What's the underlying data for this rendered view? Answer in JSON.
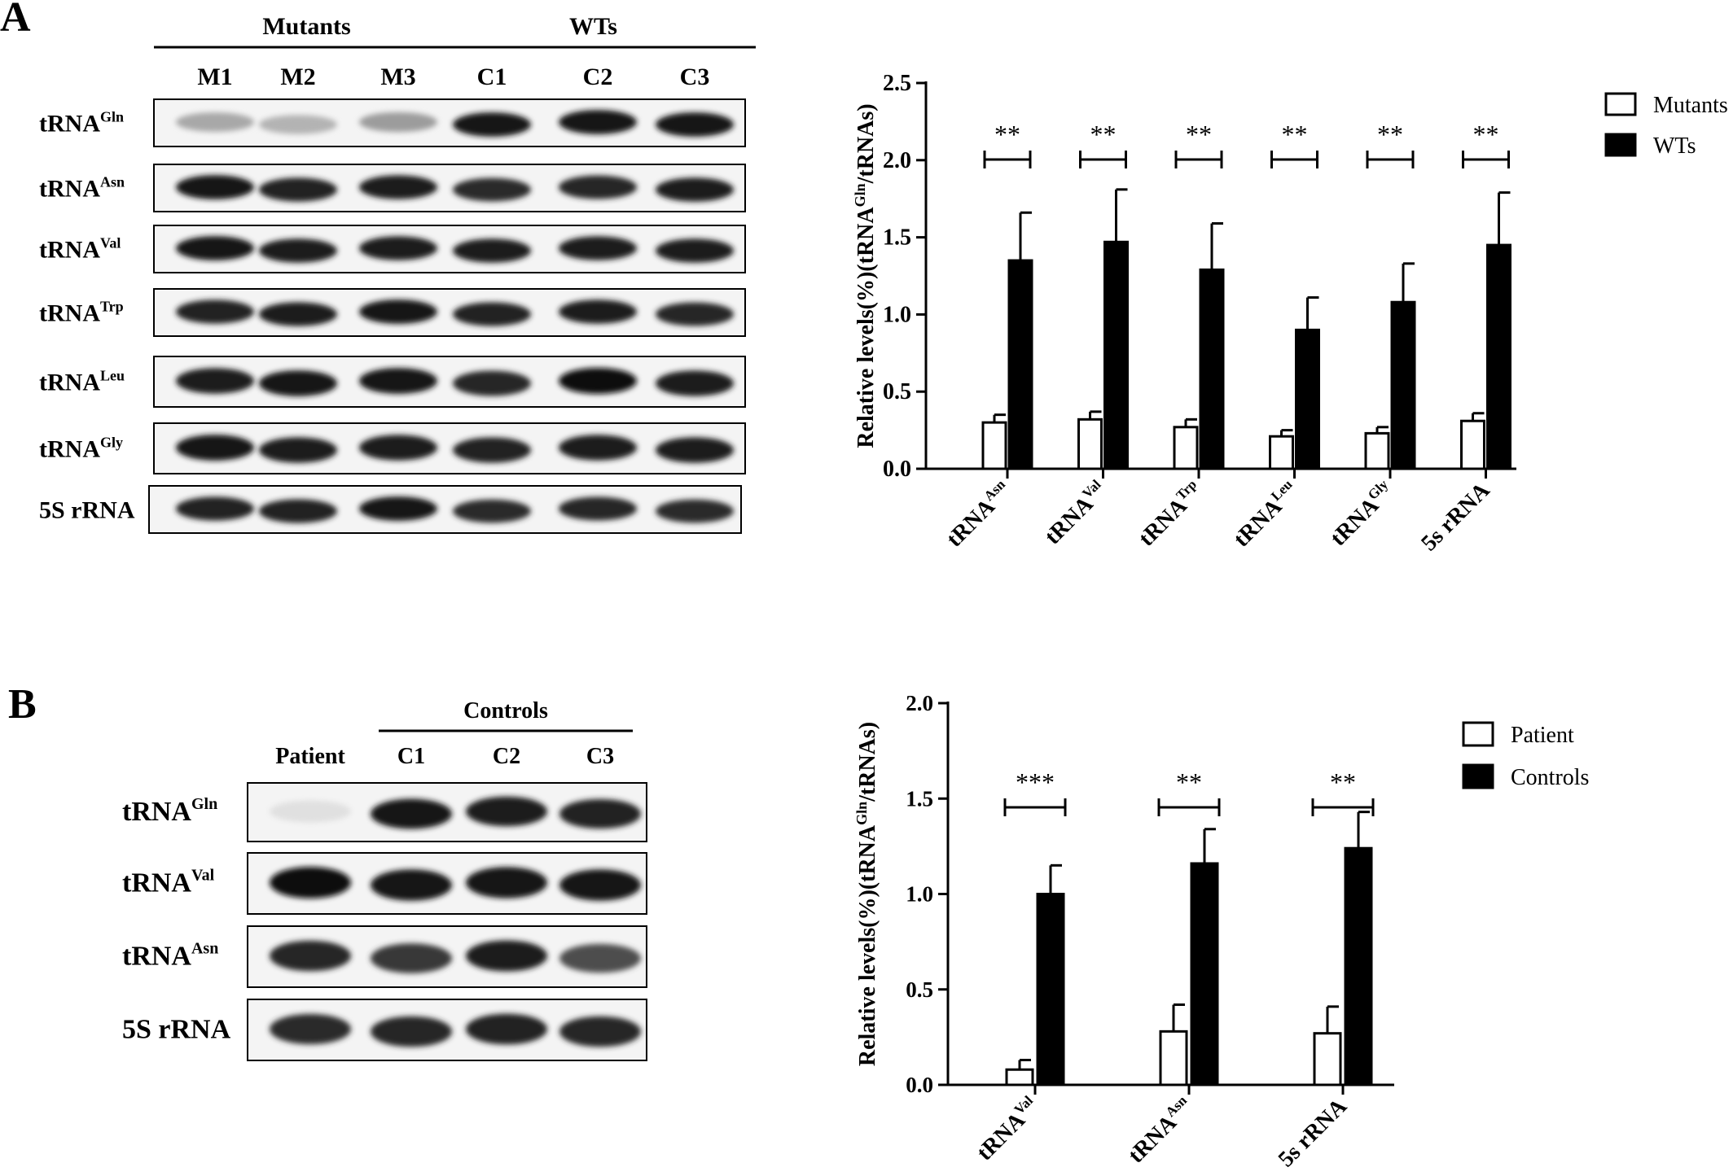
{
  "panels": {
    "A": {
      "label": "A",
      "blot": {
        "groups": [
          {
            "name": "Mutants",
            "lanes": [
              "M1",
              "M2",
              "M3"
            ]
          },
          {
            "name": "WTs",
            "lanes": [
              "C1",
              "C2",
              "C3"
            ]
          }
        ],
        "rows": [
          {
            "base": "tRNA",
            "sup": "Gln"
          },
          {
            "base": "tRNA",
            "sup": "Asn"
          },
          {
            "base": "tRNA",
            "sup": "Val"
          },
          {
            "base": "tRNA",
            "sup": "Trp"
          },
          {
            "base": "tRNA",
            "sup": "Leu"
          },
          {
            "base": "tRNA",
            "sup": "Gly"
          },
          {
            "base": "5S rRNA",
            "sup": ""
          }
        ],
        "band_intensity": [
          [
            0.3,
            0.25,
            0.35,
            0.95,
            0.95,
            0.95
          ],
          [
            0.95,
            0.9,
            0.92,
            0.85,
            0.88,
            0.92
          ],
          [
            0.95,
            0.92,
            0.92,
            0.92,
            0.92,
            0.92
          ],
          [
            0.9,
            0.92,
            0.95,
            0.9,
            0.92,
            0.88
          ],
          [
            0.92,
            0.95,
            0.95,
            0.88,
            0.98,
            0.92
          ],
          [
            0.95,
            0.92,
            0.92,
            0.9,
            0.92,
            0.92
          ],
          [
            0.9,
            0.9,
            0.95,
            0.85,
            0.88,
            0.85
          ]
        ]
      },
      "chart": {
        "ytitle": {
          "pre": "Relative levels(%)(tRNA",
          "sup": "Gln",
          "post": "/tRNAs)"
        },
        "yticks": [
          "0.0",
          "0.5",
          "1.0",
          "1.5",
          "2.0",
          "2.5"
        ],
        "legend": [
          "Mutants",
          "WTs"
        ],
        "xlabels": [
          {
            "base": "tRNA",
            "sup": "Asn"
          },
          {
            "base": "tRNA",
            "sup": "Val"
          },
          {
            "base": "tRNA",
            "sup": "Trp"
          },
          {
            "base": "tRNA",
            "sup": "Leu"
          },
          {
            "base": "tRNA",
            "sup": "Gly"
          },
          {
            "base": "5s rRNA",
            "sup": ""
          }
        ],
        "sig": [
          "**",
          "**",
          "**",
          "**",
          "**",
          "**"
        ]
      }
    },
    "B": {
      "label": "B",
      "blot": {
        "groups": [
          {
            "name": "",
            "lanes": [
              "Patient"
            ]
          },
          {
            "name": "Controls",
            "lanes": [
              "C1",
              "C2",
              "C3"
            ]
          }
        ],
        "rows": [
          {
            "base": "tRNA",
            "sup": "Gln"
          },
          {
            "base": "tRNA",
            "sup": "Val"
          },
          {
            "base": "tRNA",
            "sup": "Asn"
          },
          {
            "base": "5S rRNA",
            "sup": ""
          }
        ],
        "band_intensity": [
          [
            0.05,
            0.95,
            0.92,
            0.9
          ],
          [
            0.98,
            0.95,
            0.95,
            0.95
          ],
          [
            0.88,
            0.8,
            0.92,
            0.7
          ],
          [
            0.85,
            0.88,
            0.9,
            0.88
          ]
        ]
      },
      "chart": {
        "ytitle": {
          "pre": "Relative levels(%)(tRNA",
          "sup": "Gln",
          "post": "/tRNAs)"
        },
        "yticks": [
          "0.0",
          "0.5",
          "1.0",
          "1.5",
          "2.0"
        ],
        "legend": [
          "Patient",
          "Controls"
        ],
        "xlabels": [
          {
            "base": "tRNA",
            "sup": "Val"
          },
          {
            "base": "tRNA",
            "sup": "Asn"
          },
          {
            "base": "5s rRNA",
            "sup": ""
          }
        ],
        "sig": [
          "***",
          "**",
          "**"
        ]
      }
    }
  },
  "chart_data": [
    {
      "type": "bar",
      "categories": [
        "tRNA Asn",
        "tRNA Val",
        "tRNA Trp",
        "tRNA Leu",
        "tRNA Gly",
        "5s rRNA"
      ],
      "series": [
        {
          "name": "Mutants",
          "values": [
            0.3,
            0.32,
            0.27,
            0.21,
            0.23,
            0.31
          ],
          "errors": [
            0.05,
            0.05,
            0.05,
            0.04,
            0.04,
            0.05
          ]
        },
        {
          "name": "WTs",
          "values": [
            1.35,
            1.47,
            1.29,
            0.9,
            1.08,
            1.45
          ],
          "errors": [
            0.31,
            0.34,
            0.3,
            0.21,
            0.25,
            0.34
          ]
        }
      ],
      "ylim": [
        0,
        2.5
      ],
      "significance": [
        "**",
        "**",
        "**",
        "**",
        "**",
        "**"
      ],
      "legend_position": "top-right",
      "grid": false
    },
    {
      "type": "bar",
      "categories": [
        "tRNA Val",
        "tRNA Asn",
        "5s rRNA"
      ],
      "series": [
        {
          "name": "Patient",
          "values": [
            0.08,
            0.28,
            0.27
          ],
          "errors": [
            0.05,
            0.14,
            0.14
          ]
        },
        {
          "name": "Controls",
          "values": [
            1.0,
            1.16,
            1.24
          ],
          "errors": [
            0.15,
            0.18,
            0.19
          ]
        }
      ],
      "ylim": [
        0,
        2.0
      ],
      "significance": [
        "***",
        "**",
        "**"
      ],
      "legend_position": "top-right",
      "grid": false
    }
  ]
}
